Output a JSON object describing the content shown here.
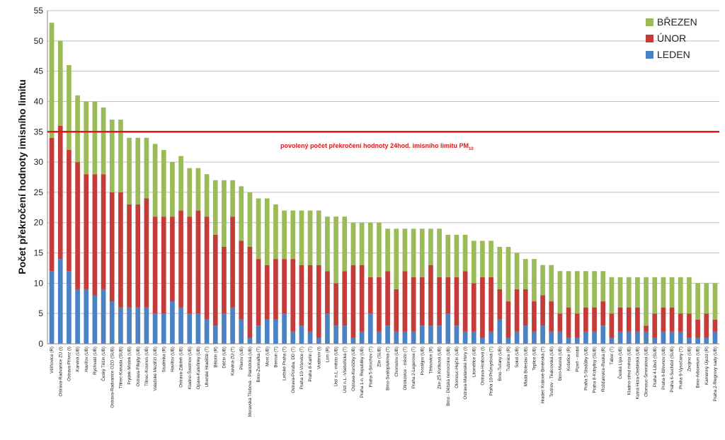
{
  "chart_data": {
    "type": "bar",
    "stacked": true,
    "ylabel": "Počet překročení hodnoty imisního limitu",
    "ylim": [
      0,
      55
    ],
    "yticks": [
      0,
      5,
      10,
      15,
      20,
      25,
      30,
      35,
      40,
      45,
      50,
      55
    ],
    "grid": true,
    "legend_position": "top-right",
    "limit_line": {
      "value": 35,
      "label": "povolený počet překročení hodnoty 24hod. imisního limitu PM",
      "label_subscript": "10",
      "color": "#e3161b"
    },
    "categories": [
      "Věřňovice (R)",
      "Ostrava-Radvanice ZÚ (I)",
      "Ostrava-Přívoz (I)",
      "Karviná (UB)",
      "Havířov (UB)",
      "Rychvald (UB)",
      "Český Těšín (UB)",
      "Ostrava-Radvanice OZO (SUB)",
      "Třinec-Kanada (SUB)",
      "Frýdek-Místek (UB)",
      "Ostrava-Fifejdy (UB)",
      "Třinec-Kosmos (UB)",
      "Valašské Meziříčí (UB)",
      "Studénka (R)",
      "Havířov (UB)",
      "Ostrava-Zábřeh (UB)",
      "Kladno-Švermov (UB)",
      "Opava-Kateřinky (UB)",
      "Uherské Hradiště (T)",
      "Bělotín (R)",
      "Děčín (UB)",
      "Karviná-ZÚ (T)",
      "Přerov (UB)",
      "Moravská Třebová - Piaristická (UB)",
      "Brno-Zvonařka (T)",
      "Most (UB)",
      "Beroun (T)",
      "Lettské Praha (T)",
      "Ostrava-Poruba, DD (T)",
      "Praha 10-Vršovice (T)",
      "Praha 8-Karlín (T)",
      "Vratimov (I)",
      "Lom (R)",
      "Ústí n.L.-město (UB)",
      "Ústí n.L.-Všebořická (T)",
      "Ostrava-Kunčičky (UB)",
      "Praha 1-n. Republiky (UB)",
      "Praha 5-Smíchov (T)",
      "Zlín (SUB)",
      "Brno-Svatoplukova (T)",
      "Chomutov (UB)",
      "Otrokovice - město (T)",
      "Praha 2-Legerova (T)",
      "Prostějov (UB)",
      "Těšnovice (R)",
      "Zlín-ZŠ Kvítková (UB)",
      "Brno - Dětská nemocnice (UB)",
      "Olomouc-Hejčín (UB)",
      "Ostrava-Mariánské Hory (I)",
      "Litoměřice (UB)",
      "Ostrava-Hrabová (I)",
      "Praha 10-Průmyslová (T)",
      "Brno-Tuřany (UB)",
      "Tušimice (R)",
      "Sokol (UB)",
      "Mladá Boleslav (UB)",
      "Teplice (UB)",
      "Hradec Králové-Brněnská (T)",
      "Trutnov - Tkalcovská (UB)",
      "Brno-Masná (UB)",
      "Košetice (R)",
      "Plzeň - mobil",
      "Praha 5-Stodůlky (UB)",
      "Praha 8-Kobylisy (SUB)",
      "Rožďalovice-Ruská (R)",
      "Tábor (T)",
      "Česká Lípa (UB)",
      "Kladno-střed města (UB)",
      "Kutná Hora-Orebitská (UB)",
      "Olomouc-Šmeralova (UB)",
      "Praha 4-Libuš (SUB)",
      "Praha 6-Břevnov (UB)",
      "Praha 6-Suchdol (SUB)",
      "Praha 9-Vysočany (T)",
      "Znojmo (UB)",
      "Brno-Arboretum (UB)",
      "Kamenný Újezd (R)",
      "Praha 2-Riegrovy sady (UB)"
    ],
    "series": [
      {
        "name": "LEDEN",
        "color": "#4a82c3",
        "values": [
          12,
          14,
          12,
          9,
          9,
          8,
          9,
          7,
          6,
          6,
          6,
          6,
          5,
          5,
          7,
          6,
          5,
          5,
          4,
          3,
          5,
          6,
          4,
          1,
          3,
          4,
          4,
          5,
          2,
          3,
          2,
          1,
          5,
          3,
          3,
          1,
          2,
          5,
          2,
          3,
          2,
          2,
          2,
          3,
          3,
          3,
          5,
          3,
          2,
          2,
          1,
          2,
          4,
          1,
          2,
          3,
          2,
          3,
          2,
          2,
          1,
          1,
          2,
          2,
          3,
          1,
          2,
          2,
          2,
          2,
          1,
          2,
          2,
          2,
          1,
          1,
          1,
          2
        ]
      },
      {
        "name": "ÚNOR",
        "color": "#c43c39",
        "values": [
          22,
          22,
          20,
          21,
          19,
          20,
          19,
          18,
          19,
          17,
          17,
          18,
          16,
          16,
          14,
          16,
          16,
          17,
          17,
          15,
          11,
          15,
          13,
          15,
          11,
          9,
          10,
          9,
          12,
          10,
          11,
          12,
          7,
          7,
          9,
          12,
          11,
          6,
          9,
          9,
          7,
          10,
          9,
          8,
          10,
          8,
          6,
          8,
          10,
          8,
          10,
          9,
          5,
          6,
          7,
          6,
          5,
          5,
          5,
          3,
          5,
          4,
          4,
          4,
          4,
          4,
          4,
          4,
          4,
          1,
          4,
          4,
          4,
          3,
          4,
          3,
          4,
          2
        ]
      },
      {
        "name": "BŘEZEN",
        "color": "#9bbb59",
        "values": [
          19,
          14,
          14,
          11,
          12,
          12,
          11,
          12,
          12,
          11,
          11,
          10,
          12,
          11,
          9,
          9,
          8,
          7,
          7,
          9,
          11,
          6,
          9,
          9,
          10,
          11,
          9,
          8,
          8,
          9,
          9,
          9,
          9,
          11,
          9,
          7,
          7,
          9,
          9,
          7,
          10,
          7,
          8,
          8,
          6,
          8,
          7,
          7,
          6,
          7,
          6,
          6,
          7,
          9,
          6,
          5,
          7,
          5,
          6,
          7,
          6,
          7,
          6,
          6,
          5,
          6,
          5,
          5,
          5,
          8,
          6,
          5,
          5,
          6,
          6,
          6,
          5,
          6
        ]
      }
    ]
  }
}
